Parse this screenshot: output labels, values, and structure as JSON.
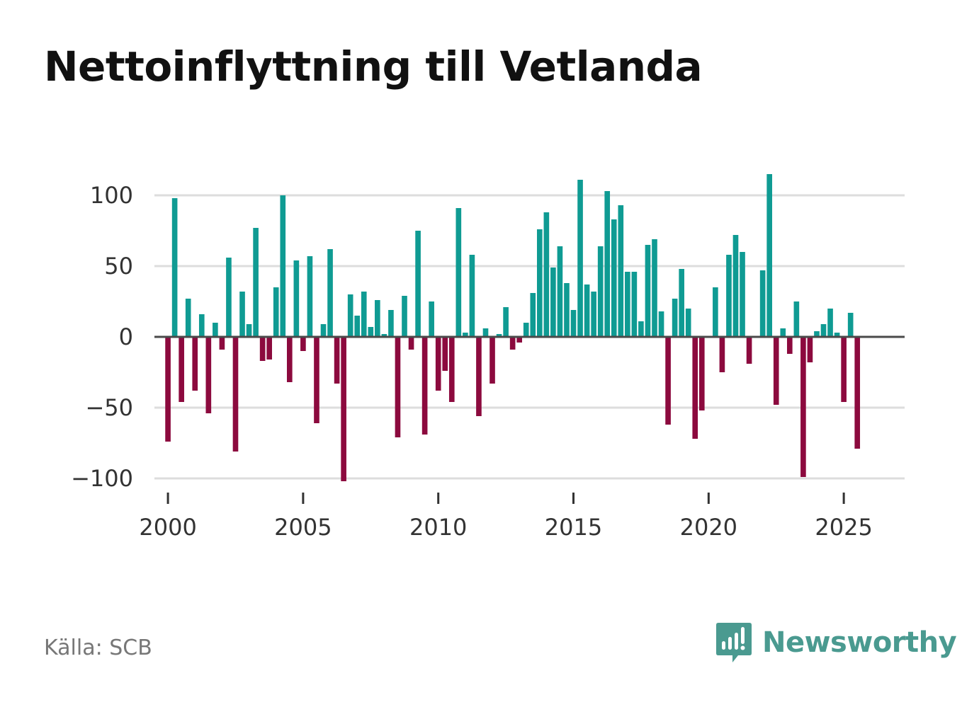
{
  "header": {
    "title": "Nettoinflyttning till Vetlanda"
  },
  "footer": {
    "source": "Källa: SCB",
    "brand": "Newsworthy"
  },
  "colors": {
    "positive": "#0f9b93",
    "negative": "#8c0a3e",
    "grid": "#dddddd",
    "zero_line": "#4a4a4a",
    "brand": "#4a9a90"
  },
  "icons": {
    "brand_logo": "newsworthy-logo-icon"
  },
  "chart_data": {
    "type": "bar",
    "title": "Nettoinflyttning till Vetlanda",
    "xlabel": "",
    "ylabel": "",
    "frequency": "quarterly",
    "x_start": 2000.0,
    "x_step": 0.25,
    "xlim": [
      1999.5,
      2027.25
    ],
    "ylim": [
      -112,
      125
    ],
    "yticks": [
      100,
      50,
      0,
      -50,
      -100
    ],
    "ytick_labels": [
      "100",
      "50",
      "0",
      "−50",
      "−100"
    ],
    "xticks": [
      2000,
      2005,
      2010,
      2015,
      2020,
      2025
    ],
    "xtick_labels": [
      "2000",
      "2005",
      "2010",
      "2015",
      "2020",
      "2025"
    ],
    "grid": true,
    "values": [
      -74,
      98,
      -46,
      27,
      -38,
      16,
      -54,
      10,
      -9,
      56,
      -81,
      32,
      9,
      77,
      -17,
      -16,
      35,
      100,
      -32,
      54,
      -10,
      57,
      -61,
      9,
      62,
      -33,
      -102,
      30,
      15,
      32,
      7,
      26,
      2,
      19,
      -71,
      29,
      -9,
      75,
      -69,
      25,
      -38,
      -24,
      -46,
      91,
      3,
      58,
      -56,
      6,
      -33,
      2,
      21,
      -9,
      -4,
      10,
      31,
      76,
      88,
      49,
      64,
      38,
      19,
      111,
      37,
      32,
      64,
      103,
      83,
      93,
      46,
      46,
      11,
      65,
      69,
      18,
      -62,
      27,
      48,
      20,
      -72,
      -52,
      0,
      35,
      -25,
      58,
      72,
      60,
      -19,
      0,
      47,
      115,
      -48,
      6,
      -12,
      25,
      -99,
      -18,
      4,
      9,
      20,
      3,
      -46,
      17,
      -79
    ]
  }
}
